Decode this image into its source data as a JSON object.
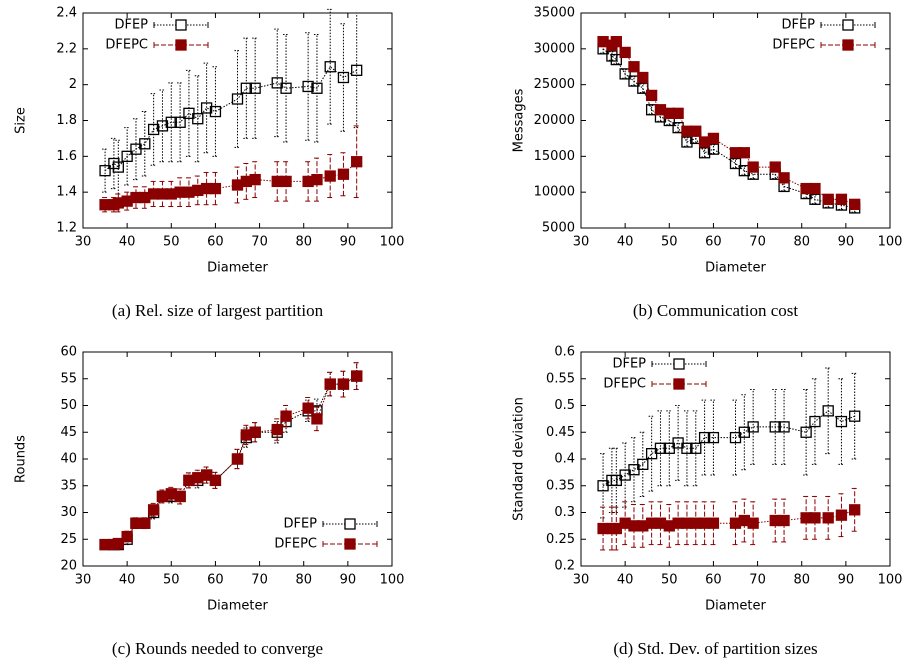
{
  "chart_data": [
    {
      "type": "line",
      "caption": "(a) Rel. size of largest partition",
      "x_label": "Diameter",
      "y_label": "Size",
      "x": [
        35,
        37,
        38,
        40,
        42,
        44,
        46,
        48,
        50,
        52,
        54,
        56,
        58,
        60,
        65,
        67,
        69,
        74,
        76,
        81,
        83,
        86,
        89,
        92
      ],
      "xlim": [
        30,
        100
      ],
      "xticks": [
        30,
        40,
        50,
        60,
        70,
        80,
        90,
        100
      ],
      "ylim": [
        1.2,
        2.4
      ],
      "yticks": [
        1.2,
        1.4,
        1.6,
        1.8,
        2,
        2.2,
        2.4
      ],
      "legend": "upper left",
      "series": [
        {
          "name": "DFEP",
          "color": "#000000",
          "marker": "open",
          "values": [
            1.52,
            1.56,
            1.54,
            1.6,
            1.64,
            1.67,
            1.75,
            1.77,
            1.79,
            1.79,
            1.84,
            1.81,
            1.87,
            1.85,
            1.92,
            1.98,
            1.98,
            2.01,
            1.98,
            1.99,
            1.98,
            2.1,
            2.04,
            2.08
          ],
          "errors": [
            0.12,
            0.14,
            0.15,
            0.16,
            0.17,
            0.18,
            0.2,
            0.2,
            0.22,
            0.22,
            0.24,
            0.24,
            0.25,
            0.25,
            0.27,
            0.28,
            0.28,
            0.3,
            0.3,
            0.3,
            0.3,
            0.32,
            0.3,
            0.32
          ]
        },
        {
          "name": "DFEPC",
          "color": "#8b0000",
          "marker": "filled",
          "values": [
            1.33,
            1.33,
            1.34,
            1.35,
            1.37,
            1.37,
            1.39,
            1.39,
            1.39,
            1.4,
            1.4,
            1.41,
            1.42,
            1.42,
            1.44,
            1.46,
            1.47,
            1.46,
            1.46,
            1.46,
            1.47,
            1.49,
            1.5,
            1.57
          ],
          "errors": [
            0.04,
            0.04,
            0.05,
            0.05,
            0.06,
            0.06,
            0.07,
            0.07,
            0.07,
            0.08,
            0.08,
            0.08,
            0.09,
            0.09,
            0.1,
            0.1,
            0.1,
            0.11,
            0.11,
            0.11,
            0.12,
            0.12,
            0.12,
            0.2
          ]
        }
      ]
    },
    {
      "type": "line",
      "caption": "(b) Communication cost",
      "x_label": "Diameter",
      "y_label": "Messages",
      "x": [
        35,
        37,
        38,
        40,
        42,
        44,
        46,
        48,
        50,
        52,
        54,
        56,
        58,
        60,
        65,
        67,
        69,
        74,
        76,
        81,
        83,
        86,
        89,
        92
      ],
      "xlim": [
        30,
        100
      ],
      "xticks": [
        30,
        40,
        50,
        60,
        70,
        80,
        90,
        100
      ],
      "ylim": [
        5000,
        35000
      ],
      "yticks": [
        5000,
        10000,
        15000,
        20000,
        25000,
        30000,
        35000
      ],
      "legend": "upper right",
      "series": [
        {
          "name": "DFEP",
          "color": "#000000",
          "marker": "open",
          "values": [
            30000,
            29000,
            28500,
            26500,
            25500,
            24500,
            21500,
            20500,
            20000,
            19000,
            17000,
            17500,
            15500,
            16000,
            14000,
            13000,
            12500,
            12500,
            10800,
            9800,
            9000,
            8500,
            8200,
            7800
          ],
          "errors": [
            600,
            600,
            600,
            600,
            600,
            600,
            600,
            600,
            600,
            600,
            600,
            600,
            600,
            600,
            600,
            600,
            600,
            600,
            600,
            600,
            600,
            600,
            600,
            600
          ]
        },
        {
          "name": "DFEPC",
          "color": "#8b0000",
          "marker": "filled",
          "values": [
            31000,
            30500,
            31000,
            29500,
            27500,
            26000,
            23500,
            21500,
            21000,
            21000,
            18500,
            18500,
            17000,
            17500,
            15500,
            15500,
            13500,
            13500,
            12000,
            10500,
            10500,
            9000,
            9000,
            8300
          ],
          "errors": [
            600,
            600,
            600,
            600,
            600,
            600,
            600,
            600,
            600,
            600,
            600,
            600,
            600,
            600,
            600,
            600,
            600,
            600,
            600,
            600,
            600,
            600,
            600,
            600
          ]
        }
      ]
    },
    {
      "type": "line",
      "caption": "(c) Rounds needed to converge",
      "x_label": "Diameter",
      "y_label": "Rounds",
      "x": [
        35,
        37,
        38,
        40,
        42,
        44,
        46,
        48,
        50,
        52,
        54,
        56,
        58,
        60,
        65,
        67,
        69,
        74,
        76,
        81,
        83,
        86,
        89,
        92
      ],
      "xlim": [
        30,
        100
      ],
      "xticks": [
        30,
        40,
        50,
        60,
        70,
        80,
        90,
        100
      ],
      "ylim": [
        20,
        60
      ],
      "yticks": [
        20,
        25,
        30,
        35,
        40,
        45,
        50,
        55,
        60
      ],
      "legend": "lower right",
      "series": [
        {
          "name": "DFEP",
          "color": "#000000",
          "marker": "open",
          "values": [
            24,
            24,
            24,
            25,
            28,
            28,
            30,
            33,
            33,
            33,
            36,
            36,
            37,
            36,
            40,
            44,
            45,
            45,
            47,
            49,
            49,
            54,
            54,
            55.5
          ],
          "errors": [
            0.8,
            0.8,
            0.8,
            1,
            1,
            1,
            1.2,
            1.2,
            1.2,
            1.4,
            1.4,
            1.4,
            1.5,
            1.5,
            1.8,
            1.8,
            1.8,
            2,
            2,
            2,
            2.2,
            2.2,
            2.4,
            2.5
          ]
        },
        {
          "name": "DFEPC",
          "color": "#8b0000",
          "marker": "filled",
          "values": [
            24,
            24,
            24.2,
            25.5,
            28,
            28,
            30.5,
            33,
            33.5,
            33,
            36,
            36.5,
            37,
            36,
            40,
            44.5,
            45,
            45.5,
            48,
            49.5,
            47.5,
            54,
            54,
            55.5
          ],
          "errors": [
            0.8,
            0.8,
            0.8,
            1,
            1,
            1,
            1.2,
            1.2,
            1.2,
            1.4,
            1.4,
            1.4,
            1.5,
            1.5,
            1.8,
            1.8,
            1.8,
            2,
            2,
            2,
            2.2,
            2.2,
            2.4,
            2.5
          ]
        }
      ]
    },
    {
      "type": "line",
      "caption": "(d) Std. Dev. of partition sizes",
      "x_label": "Diameter",
      "y_label": "Standard deviation",
      "x": [
        35,
        37,
        38,
        40,
        42,
        44,
        46,
        48,
        50,
        52,
        54,
        56,
        58,
        60,
        65,
        67,
        69,
        74,
        76,
        81,
        83,
        86,
        89,
        92
      ],
      "xlim": [
        30,
        100
      ],
      "xticks": [
        30,
        40,
        50,
        60,
        70,
        80,
        90,
        100
      ],
      "ylim": [
        0.2,
        0.6
      ],
      "yticks": [
        0.2,
        0.25,
        0.3,
        0.35,
        0.4,
        0.45,
        0.5,
        0.55,
        0.6
      ],
      "legend": "upper left",
      "series": [
        {
          "name": "DFEP",
          "color": "#000000",
          "marker": "open",
          "values": [
            0.35,
            0.36,
            0.36,
            0.37,
            0.38,
            0.39,
            0.41,
            0.42,
            0.42,
            0.43,
            0.42,
            0.42,
            0.44,
            0.44,
            0.44,
            0.45,
            0.46,
            0.46,
            0.46,
            0.45,
            0.47,
            0.49,
            0.47,
            0.48
          ],
          "errors": [
            0.06,
            0.06,
            0.06,
            0.06,
            0.06,
            0.06,
            0.07,
            0.07,
            0.07,
            0.07,
            0.07,
            0.07,
            0.07,
            0.07,
            0.07,
            0.07,
            0.07,
            0.07,
            0.07,
            0.08,
            0.08,
            0.08,
            0.08,
            0.08
          ]
        },
        {
          "name": "DFEPC",
          "color": "#8b0000",
          "marker": "filled",
          "values": [
            0.27,
            0.27,
            0.27,
            0.28,
            0.275,
            0.275,
            0.28,
            0.28,
            0.275,
            0.28,
            0.28,
            0.28,
            0.28,
            0.28,
            0.28,
            0.285,
            0.28,
            0.285,
            0.285,
            0.29,
            0.29,
            0.29,
            0.295,
            0.305
          ],
          "errors": [
            0.04,
            0.04,
            0.04,
            0.04,
            0.04,
            0.04,
            0.04,
            0.04,
            0.04,
            0.04,
            0.04,
            0.04,
            0.04,
            0.04,
            0.04,
            0.04,
            0.04,
            0.04,
            0.04,
            0.04,
            0.04,
            0.04,
            0.04,
            0.04
          ]
        }
      ]
    }
  ]
}
